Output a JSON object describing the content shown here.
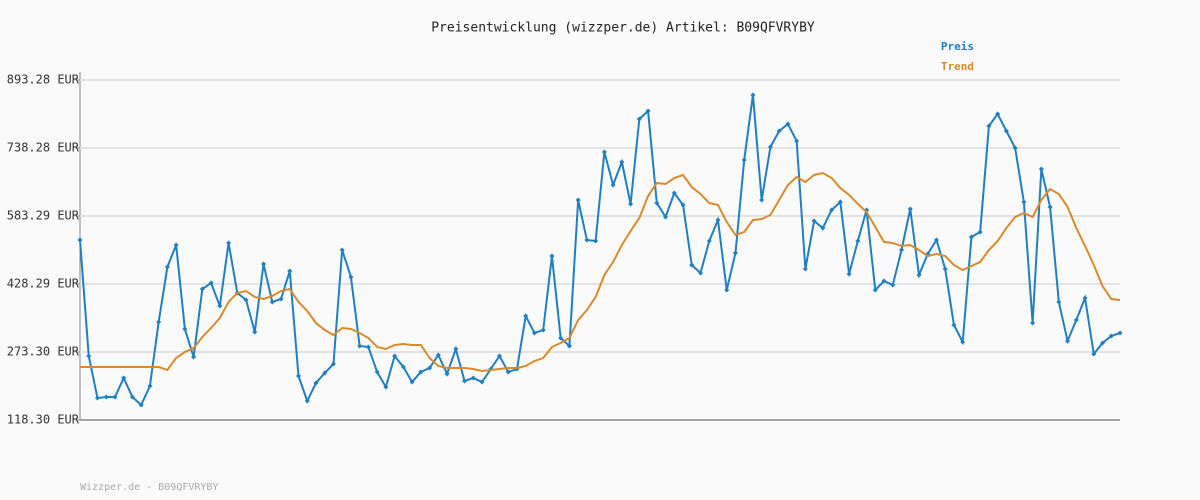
{
  "chart_data": {
    "type": "line",
    "title": "Preisentwicklung (wizzper.de) Artikel: B09QFVRYBY",
    "footer": "Wizzper.de - B09QFVRYBY",
    "ylim": [
      118.3,
      893.28
    ],
    "yticks": [
      {
        "value": 118.3,
        "label": "118.30 EUR"
      },
      {
        "value": 273.3,
        "label": "273.30 EUR"
      },
      {
        "value": 428.29,
        "label": "428.29 EUR"
      },
      {
        "value": 583.29,
        "label": "583.29 EUR"
      },
      {
        "value": 738.28,
        "label": "738.28 EUR"
      },
      {
        "value": 893.28,
        "label": "893.28 EUR"
      }
    ],
    "grid": true,
    "legend": "top-right",
    "series": [
      {
        "name": "Preis",
        "color": "#1f7fc0",
        "markers": true,
        "values": [
          528.6,
          264.2,
          168.4,
          170.7,
          170.7,
          214.0,
          170.7,
          152.5,
          195.8,
          341.7,
          467.0,
          517.2,
          325.7,
          261.9,
          416.9,
          430.6,
          378.2,
          521.8,
          407.8,
          391.8,
          318.9,
          473.9,
          387.3,
          394.1,
          457.9,
          218.6,
          161.6,
          202.6,
          225.4,
          245.9,
          505.8,
          444.3,
          287.0,
          284.7,
          227.7,
          193.5,
          264.2,
          239.1,
          204.9,
          227.7,
          236.8,
          266.5,
          223.2,
          280.1,
          207.2,
          214.0,
          204.9,
          234.5,
          264.2,
          227.7,
          234.5,
          355.4,
          316.6,
          323.4,
          492.1,
          305.2,
          287.0,
          619.8,
          528.6,
          526.3,
          729.2,
          654.0,
          706.4,
          610.7,
          804.4,
          822.6,
          612.9,
          581.0,
          635.7,
          608.4,
          471.6,
          453.4,
          526.3,
          574.2,
          414.6,
          499.0,
          710.9,
          859.1,
          619.8,
          740.6,
          777.0,
          793.0,
          754.3,
          462.5,
          571.9,
          555.9,
          597.0,
          615.2,
          451.1,
          526.3,
          597.0,
          414.6,
          435.1,
          426.0,
          505.8,
          599.3,
          448.8,
          496.7,
          528.6,
          462.5,
          334.8,
          296.1,
          535.4,
          546.8,
          788.4,
          815.8,
          777.0,
          738.3,
          615.2,
          339.4,
          690.4,
          603.8,
          387.3,
          298.4,
          346.2,
          396.4,
          268.7,
          293.8,
          309.8,
          316.6
        ]
      },
      {
        "name": "Trend",
        "color": "#d98a2b",
        "markers": false,
        "values": [
          239.1,
          239.1,
          239.1,
          239.1,
          239.1,
          239.1,
          239.1,
          239.1,
          239.1,
          239.1,
          232.3,
          259.6,
          273.3,
          282.4,
          307.5,
          328.0,
          350.8,
          387.3,
          407.8,
          412.3,
          398.7,
          394.1,
          400.9,
          412.3,
          416.9,
          387.3,
          366.8,
          339.4,
          323.4,
          312.0,
          328.0,
          325.7,
          316.6,
          305.2,
          284.7,
          280.1,
          289.3,
          291.5,
          289.3,
          289.3,
          259.6,
          241.4,
          236.8,
          236.8,
          236.8,
          234.5,
          230.0,
          232.3,
          234.5,
          236.8,
          236.8,
          241.4,
          252.8,
          259.6,
          284.7,
          293.8,
          305.2,
          346.2,
          369.0,
          398.7,
          448.8,
          478.4,
          517.2,
          549.1,
          578.7,
          628.9,
          658.5,
          656.2,
          669.9,
          676.8,
          649.4,
          633.4,
          612.9,
          608.4,
          569.6,
          540.0,
          546.8,
          574.2,
          576.5,
          585.6,
          619.8,
          654.0,
          672.2,
          660.8,
          676.8,
          681.3,
          669.9,
          647.1,
          631.2,
          610.7,
          592.4,
          558.2,
          524.0,
          521.8,
          514.9,
          517.2,
          505.8,
          492.1,
          496.7,
          492.1,
          471.6,
          460.2,
          469.3,
          478.4,
          505.8,
          526.3,
          555.9,
          581.0,
          590.1,
          581.0,
          619.8,
          644.8,
          633.4,
          603.8,
          555.9,
          514.9,
          471.6,
          423.7,
          394.1,
          391.8
        ]
      }
    ]
  }
}
